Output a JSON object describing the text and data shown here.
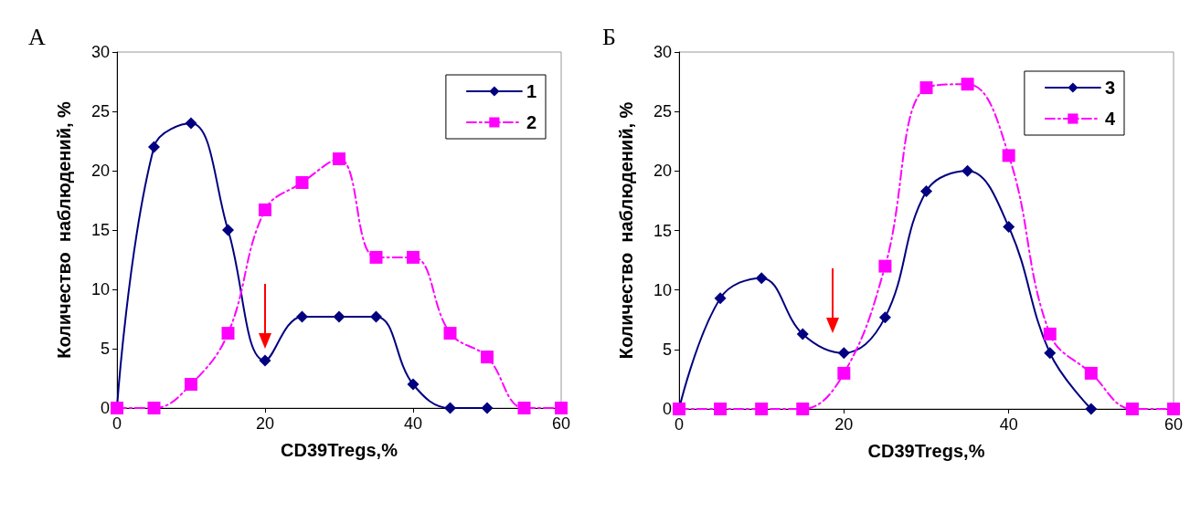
{
  "chart_data": [
    {
      "type": "line",
      "title": "А",
      "xlabel": "CD39Tregs,%",
      "ylabel": "Количество  наблюдений, %",
      "xlim": [
        0,
        60
      ],
      "xticks": [
        0,
        20,
        40,
        60
      ],
      "ylim": [
        0,
        30
      ],
      "yticks": [
        0,
        5,
        10,
        15,
        20,
        25,
        30
      ],
      "grid": false,
      "legend": "top right",
      "series": [
        {
          "name": "1",
          "color": "#000080",
          "marker": "diamond",
          "line_style": "solid",
          "x": [
            0,
            5,
            10,
            15,
            20,
            25,
            30,
            35,
            40,
            45,
            50
          ],
          "values": [
            0,
            22,
            24,
            15,
            4,
            7.7,
            7.7,
            7.7,
            2,
            0,
            0
          ]
        },
        {
          "name": "2",
          "color": "#ff00ff",
          "marker": "square",
          "line_style": "dashed",
          "x": [
            0,
            5,
            10,
            15,
            20,
            25,
            30,
            35,
            40,
            45,
            50,
            55,
            60
          ],
          "values": [
            0,
            0,
            2,
            6.3,
            16.7,
            19,
            21,
            12.7,
            12.7,
            6.3,
            4.3,
            0,
            0
          ]
        }
      ]
    },
    {
      "type": "line",
      "title": "Б",
      "xlabel": "CD39Tregs,%",
      "ylabel": "Количество  наблюдений, %",
      "xlim": [
        0,
        60
      ],
      "xticks": [
        0,
        20,
        40,
        60
      ],
      "ylim": [
        0,
        30
      ],
      "yticks": [
        0,
        5,
        10,
        15,
        20,
        25,
        30
      ],
      "grid": false,
      "legend": "top right",
      "series": [
        {
          "name": "3",
          "color": "#000080",
          "marker": "diamond",
          "line_style": "solid",
          "x": [
            0,
            5,
            10,
            15,
            20,
            25,
            30,
            35,
            40,
            45,
            50
          ],
          "values": [
            0,
            9.3,
            11,
            6.3,
            4.7,
            7.7,
            18.3,
            20,
            15.3,
            4.7,
            0
          ]
        },
        {
          "name": "4",
          "color": "#ff00ff",
          "marker": "square",
          "line_style": "dashed",
          "x": [
            0,
            5,
            10,
            15,
            20,
            25,
            30,
            35,
            40,
            45,
            50,
            55,
            60
          ],
          "values": [
            0,
            0,
            0,
            0,
            3,
            12,
            27,
            27.3,
            21.3,
            6.3,
            3,
            0,
            0
          ]
        }
      ]
    }
  ]
}
